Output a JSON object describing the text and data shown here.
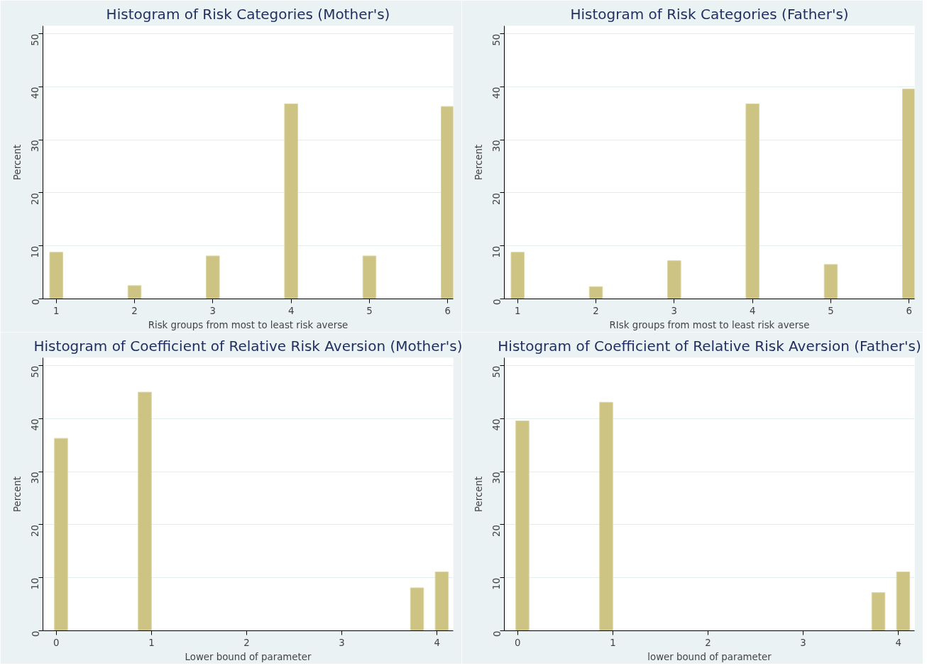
{
  "chart_data": [
    {
      "type": "bar",
      "title": "Histogram of Risk Categories (Mother's)",
      "xlabel": "Risk groups from most to least risk averse",
      "ylabel": "Percent",
      "x": [
        1,
        2,
        3,
        4,
        5,
        6
      ],
      "values": [
        8.8,
        2.5,
        8.1,
        36.8,
        8.1,
        36.3
      ],
      "color": "#cdc382",
      "xlim": [
        0.83,
        6.07
      ],
      "xticks": [
        1,
        2,
        3,
        4,
        5,
        6
      ],
      "ylim": [
        0,
        51.5
      ],
      "yticks": [
        0,
        10,
        20,
        30,
        40,
        50
      ],
      "grid": "y"
    },
    {
      "type": "bar",
      "title": "Histogram of Risk Categories (Father's)",
      "xlabel": "RIsk groups from most to least risk averse",
      "ylabel": "Percent",
      "x": [
        1,
        2,
        3,
        4,
        5,
        6
      ],
      "values": [
        8.8,
        2.3,
        7.2,
        36.8,
        6.5,
        39.6
      ],
      "color": "#cdc382",
      "xlim": [
        0.83,
        6.07
      ],
      "xticks": [
        1,
        2,
        3,
        4,
        5,
        6
      ],
      "ylim": [
        0,
        51.5
      ],
      "yticks": [
        0,
        10,
        20,
        30,
        40,
        50
      ],
      "grid": "y"
    },
    {
      "type": "bar",
      "title": "Histogram of Coefficient of Relative Risk Aversion (Mother's)",
      "xlabel": "Lower bound of parameter",
      "ylabel": "Percent",
      "x": [
        0.05,
        0.93,
        3.79,
        4.05
      ],
      "values": [
        36.3,
        45,
        8.1,
        11.1
      ],
      "color": "#cdc382",
      "xlim": [
        -0.14,
        4.17
      ],
      "xticks": [
        0,
        1,
        2,
        3,
        4
      ],
      "ylim": [
        0,
        51.5
      ],
      "yticks": [
        0,
        10,
        20,
        30,
        40,
        50
      ],
      "grid": "y"
    },
    {
      "type": "bar",
      "title": "Histogram of Coefficient of Relative Risk Aversion (Father's)",
      "xlabel": "lower bound of parameter",
      "ylabel": "Percent",
      "x": [
        0.05,
        0.93,
        3.79,
        4.05
      ],
      "values": [
        39.6,
        43.1,
        7.2,
        11.1
      ],
      "color": "#cdc382",
      "xlim": [
        -0.14,
        4.17
      ],
      "xticks": [
        0,
        1,
        2,
        3,
        4
      ],
      "ylim": [
        0,
        51.5
      ],
      "yticks": [
        0,
        10,
        20,
        30,
        40,
        50
      ],
      "grid": "y"
    }
  ]
}
